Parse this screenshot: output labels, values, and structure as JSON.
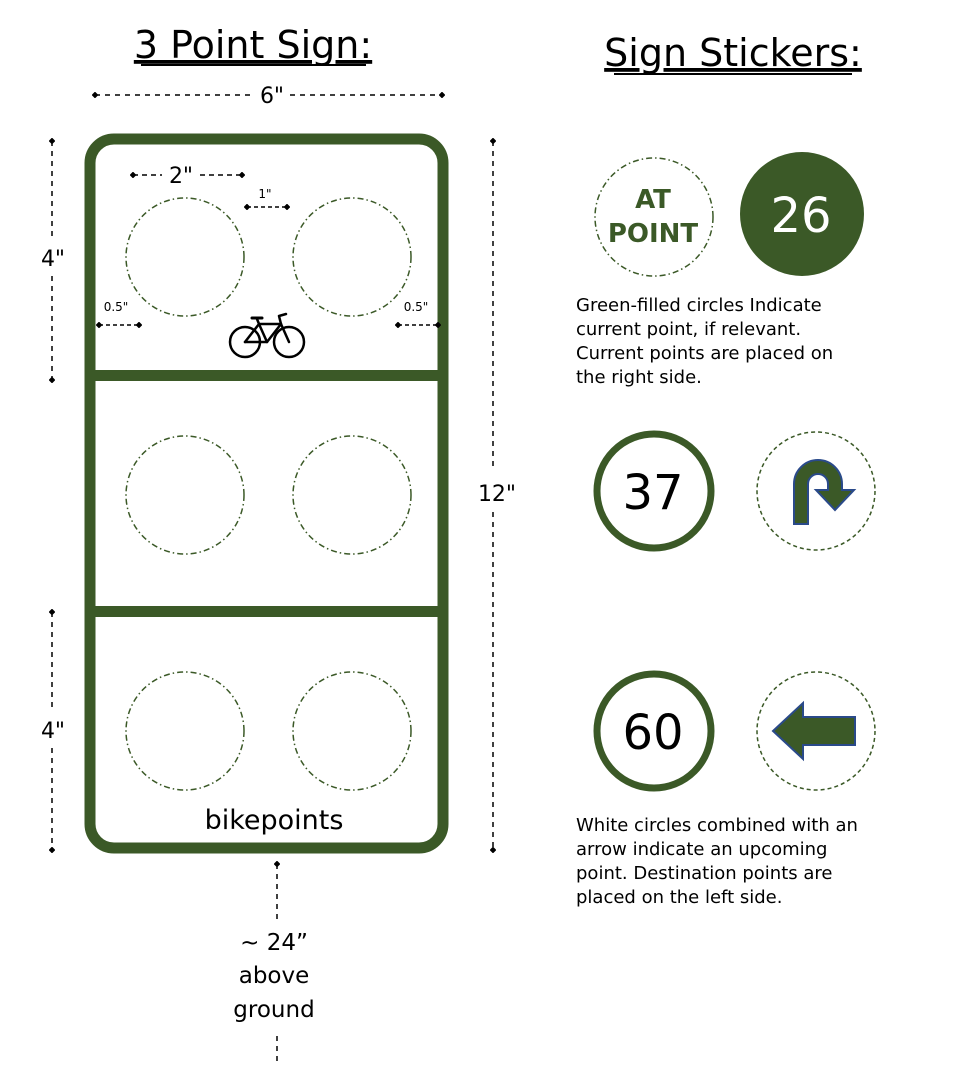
{
  "colors": {
    "green": "#3b5927",
    "black": "#000000",
    "white": "#ffffff"
  },
  "sign": {
    "title": "3 Point Sign:",
    "width_label": "6\"",
    "circle_label": "2\"",
    "gap_label": "1\"",
    "margin_left_label": "0.5\"",
    "margin_right_label": "0.5\"",
    "top_section_label": "4\"",
    "height_label": "12\"",
    "bottom_section_label": "4\"",
    "brand": "bikepoints",
    "bike_icon": "bicycle-icon",
    "mount_lines": [
      "~ 24”",
      "above",
      "ground"
    ]
  },
  "stickers": {
    "title": "Sign Stickers:",
    "at_point": [
      "AT",
      "POINT"
    ],
    "current_number": "26",
    "current_desc": [
      "Green-filled circles Indicate",
      "current point, if relevant.",
      "Current points are placed on",
      "the right side."
    ],
    "upcoming_1_number": "37",
    "upcoming_1_icon": "u-turn-arrow-icon",
    "upcoming_2_number": "60",
    "upcoming_2_icon": "left-arrow-icon",
    "upcoming_desc": [
      "White circles combined with an",
      "arrow indicate an upcoming",
      "point. Destination points are",
      "placed on the left side."
    ]
  }
}
